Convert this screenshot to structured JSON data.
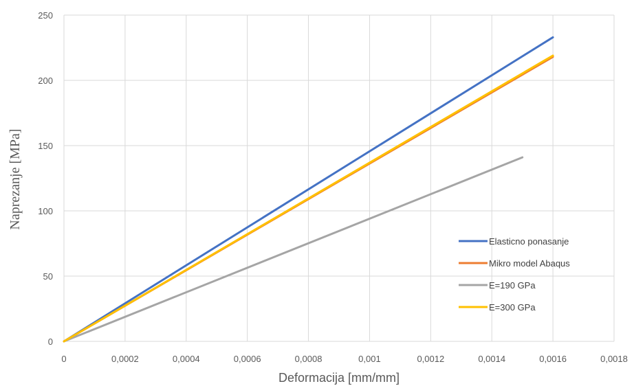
{
  "chart_data": {
    "type": "line",
    "title": "",
    "xlabel": "Deformacija [mm/mm]",
    "ylabel": "Naprezanje [MPa]",
    "xlim": [
      0,
      0.0018
    ],
    "ylim": [
      0,
      250
    ],
    "x_ticks": [
      "0",
      "0,0002",
      "0,0004",
      "0,0006",
      "0,0008",
      "0,001",
      "0,0012",
      "0,0014",
      "0,0016",
      "0,0018"
    ],
    "y_ticks": [
      "0",
      "50",
      "100",
      "150",
      "200",
      "250"
    ],
    "grid": true,
    "legend_position": "right",
    "series": [
      {
        "name": "Elasticno ponasanje",
        "color": "#4472c4",
        "x": [
          0,
          0.0016
        ],
        "y": [
          0,
          233
        ]
      },
      {
        "name": "Mikro model Abaqus",
        "color": "#ed7d31",
        "x": [
          0,
          0.0016
        ],
        "y": [
          0,
          218
        ]
      },
      {
        "name": "E=190 GPa",
        "color": "#a5a5a5",
        "x": [
          0,
          0.0015
        ],
        "y": [
          0,
          141
        ]
      },
      {
        "name": "E=300 GPa",
        "color": "#ffc000",
        "x": [
          0,
          0.0016
        ],
        "y": [
          0,
          219
        ]
      }
    ]
  }
}
